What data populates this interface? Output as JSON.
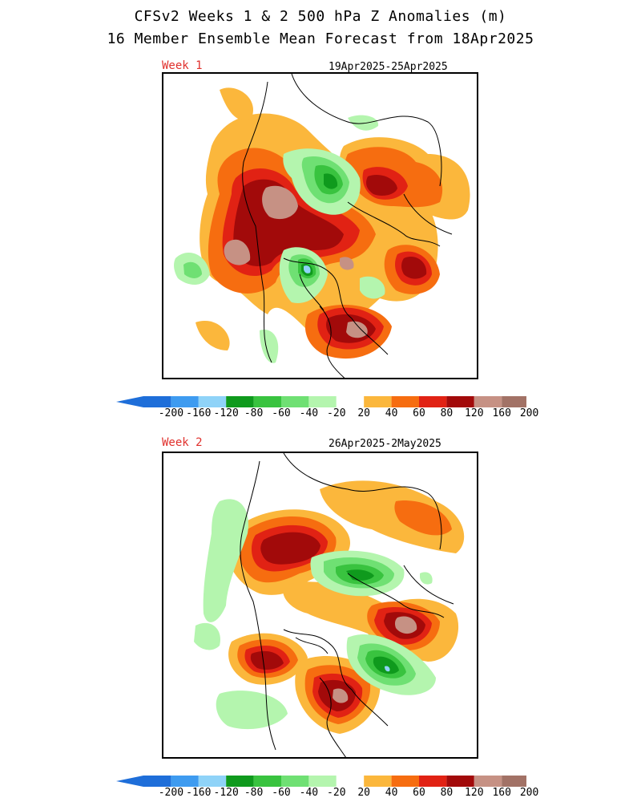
{
  "title_line1": "CFSv2 Weeks 1 & 2 500 hPa Z Anomalies (m)",
  "title_line2": "16 Member Ensemble Mean Forecast from 18Apr2025",
  "panels": [
    {
      "label": "Week 1",
      "dates": "19Apr2025-25Apr2025"
    },
    {
      "label": "Week 2",
      "dates": "26Apr2025-2May2025"
    }
  ],
  "colorbar": {
    "labels": [
      "-200",
      "-160",
      "-120",
      "-80",
      "-60",
      "-40",
      "-20",
      "20",
      "40",
      "60",
      "80",
      "120",
      "160",
      "200"
    ],
    "colors": [
      "#1e6ed9",
      "#3e9bf0",
      "#8fd3f8",
      "#0f9a1d",
      "#39c33f",
      "#6fe073",
      "#b4f5ae",
      "#ffffff",
      "#fbb73c",
      "#f66d10",
      "#e12214",
      "#a20a0a",
      "#c69184",
      "#a27266",
      "#6a3e2e"
    ],
    "low_end_color": "#1e6ed9",
    "high_end_color": "#6a3e2e"
  },
  "palette": {
    "c20": "#fbb73c",
    "c40": "#f66d10",
    "c60": "#e12214",
    "c80": "#a20a0a",
    "c120": "#c69184",
    "n20": "#b4f5ae",
    "n40": "#6fe073",
    "n60": "#39c33f",
    "n80": "#0f9a1d",
    "n120": "#8fd3f8",
    "n160": "#3e9bf0"
  }
}
